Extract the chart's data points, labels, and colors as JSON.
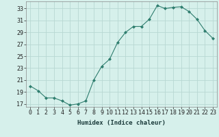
{
  "x": [
    0,
    1,
    2,
    3,
    4,
    5,
    6,
    7,
    8,
    9,
    10,
    11,
    12,
    13,
    14,
    15,
    16,
    17,
    18,
    19,
    20,
    21,
    22,
    23
  ],
  "y": [
    20.0,
    19.2,
    18.0,
    18.0,
    17.5,
    16.8,
    17.0,
    17.5,
    21.0,
    23.3,
    24.5,
    27.3,
    29.0,
    30.0,
    30.0,
    31.2,
    33.5,
    33.0,
    33.2,
    33.3,
    32.5,
    31.2,
    29.3,
    28.0
  ],
  "line_color": "#2e7d6e",
  "marker": "D",
  "marker_size": 2.0,
  "bg_color": "#d6f0eb",
  "grid_color": "#b8d8d2",
  "xlabel": "Humidex (Indice chaleur)",
  "yticks": [
    17,
    19,
    21,
    23,
    25,
    27,
    29,
    31,
    33
  ],
  "xtick_labels": [
    "0",
    "1",
    "2",
    "3",
    "4",
    "5",
    "6",
    "7",
    "8",
    "9",
    "10",
    "11",
    "12",
    "13",
    "14",
    "15",
    "16",
    "17",
    "18",
    "19",
    "20",
    "21",
    "22",
    "23"
  ],
  "ylim": [
    16.5,
    34.2
  ],
  "xlim": [
    -0.5,
    23.5
  ],
  "tick_fontsize": 6.0,
  "xlabel_fontsize": 6.5
}
